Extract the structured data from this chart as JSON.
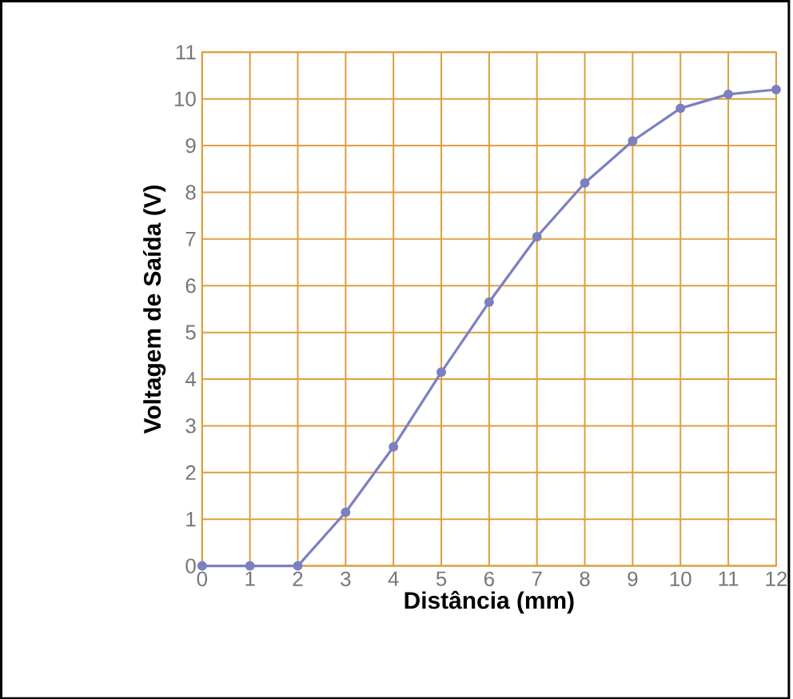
{
  "chart_data": {
    "type": "line",
    "xlabel": "Distância (mm)",
    "ylabel": "Voltagem de Saída (V)",
    "x": [
      0,
      1,
      2,
      3,
      4,
      5,
      6,
      7,
      8,
      9,
      10,
      11,
      12
    ],
    "series": [
      {
        "color": "#7b80c0",
        "values": [
          0,
          0,
          0,
          1.15,
          2.55,
          4.15,
          5.65,
          7.05,
          8.2,
          9.1,
          9.8,
          10.1,
          10.2
        ]
      }
    ],
    "xlim": [
      0,
      12
    ],
    "ylim": [
      0,
      11
    ],
    "xticks": [
      0,
      1,
      2,
      3,
      4,
      5,
      6,
      7,
      8,
      9,
      10,
      11,
      12
    ],
    "yticks": [
      0,
      1,
      2,
      3,
      4,
      5,
      6,
      7,
      8,
      9,
      10,
      11
    ],
    "grid": true,
    "marker": "circle",
    "line_style": "solid"
  }
}
